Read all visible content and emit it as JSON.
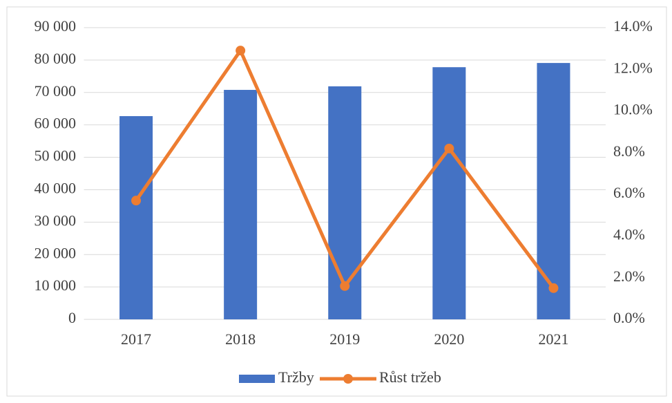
{
  "chart_data": {
    "type": "bar-line",
    "categories": [
      "2017",
      "2018",
      "2019",
      "2020",
      "2021"
    ],
    "series": [
      {
        "name": "Tržby",
        "type": "bar",
        "color": "#4472c4",
        "values": [
          62700,
          70800,
          71900,
          77800,
          79100
        ]
      },
      {
        "name": "Růst tržeb",
        "type": "line",
        "axis": "y2",
        "color": "#ed7d31",
        "values": [
          5.7,
          12.9,
          1.6,
          8.2,
          1.5
        ]
      }
    ],
    "ylim": [
      0,
      90000
    ],
    "yticks": [
      0,
      {
        "value": 10000,
        "label": "10 000"
      },
      {
        "value": 20000,
        "label": "20 000"
      },
      {
        "value": 30000,
        "label": "30 000"
      },
      {
        "value": 40000,
        "label": "40 000"
      },
      {
        "value": 50000,
        "label": "50 000"
      },
      {
        "value": 60000,
        "label": "60 000"
      },
      {
        "value": 70000,
        "label": "70 000"
      },
      {
        "value": 80000,
        "label": "80 000"
      },
      {
        "value": 90000,
        "label": "90 000"
      }
    ],
    "y2lim": [
      0,
      14
    ],
    "y2ticks": [
      {
        "value": 0,
        "label": "0.0%"
      },
      {
        "value": 2,
        "label": "2.0%"
      },
      {
        "value": 4,
        "label": "4.0%"
      },
      {
        "value": 6,
        "label": "6.0%"
      },
      {
        "value": 8,
        "label": "8.0%"
      },
      {
        "value": 10,
        "label": "10.0%"
      },
      {
        "value": 12,
        "label": "12.0%"
      },
      {
        "value": 14,
        "label": "14.0%"
      }
    ],
    "grid": true,
    "legend": "bottom"
  }
}
